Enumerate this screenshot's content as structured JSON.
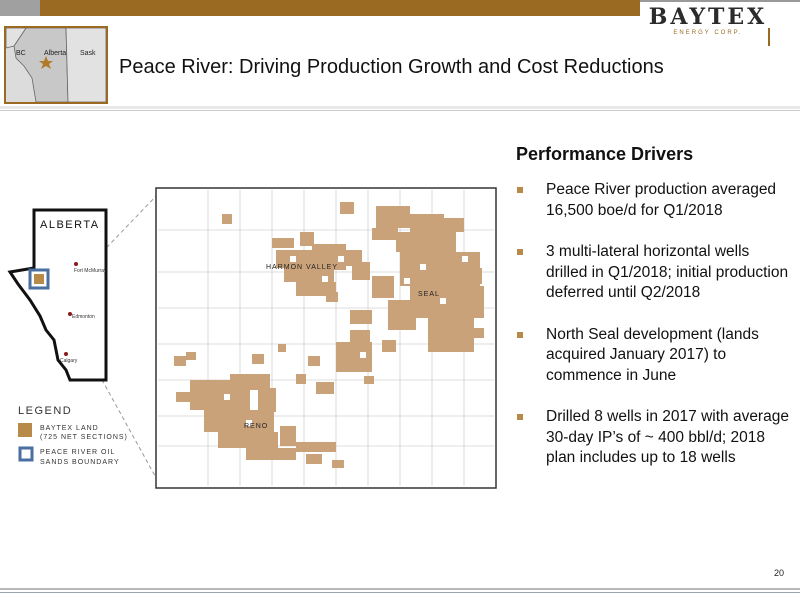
{
  "header": {
    "title": "Peace River: Driving Production Growth and Cost Reductions",
    "logo_word": "BAYTEX",
    "logo_sub": "ENERGY CORP."
  },
  "inset_map": {
    "labels": [
      "BC",
      "Alberta",
      "Sask"
    ]
  },
  "map": {
    "province_label": "ALBERTA",
    "city_labels": [
      "Fort McMurray",
      "Edmonton",
      "Calgary"
    ],
    "area_labels": [
      "HARMON VALLEY",
      "SEAL",
      "RENO"
    ],
    "legend": {
      "title": "LEGEND",
      "items": [
        {
          "label_line1": "BAYTEX LAND",
          "label_line2": "(725 NET SECTIONS)",
          "color": "#b88a4a"
        },
        {
          "label_line1": "PEACE RIVER OIL",
          "label_line2": "SANDS BOUNDARY",
          "color": "#4a6fa0"
        }
      ]
    }
  },
  "content": {
    "heading": "Performance Drivers",
    "bullets": [
      "Peace River production averaged 16,500 boe/d for Q1/2018",
      "3 multi-lateral horizontal wells drilled in Q1/2018; initial production deferred until Q2/2018",
      "North Seal development (lands acquired January 2017) to commence in June",
      "Drilled 8 wells in 2017 with average 30-day IP’s of ~ 400 bbl/d; 2018 plan includes up to 18 wells"
    ]
  },
  "footer": {
    "page_number": "20"
  },
  "colors": {
    "accent_brown": "#9a6a22",
    "land_tan": "#c9a27a",
    "boundary_blue": "#4a6fa0"
  }
}
